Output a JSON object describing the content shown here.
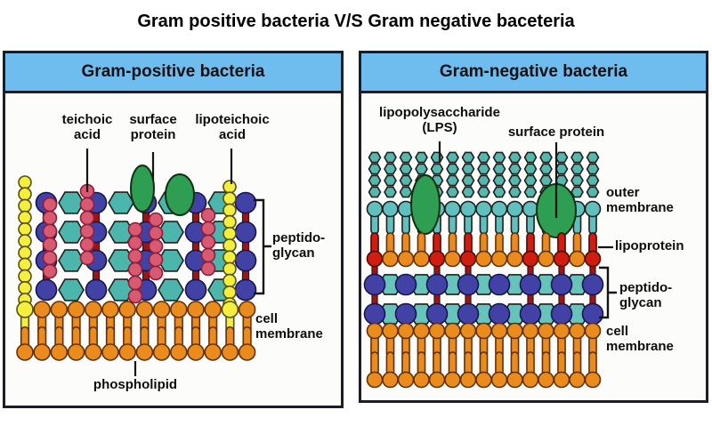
{
  "title": "Gram positive bacteria V/S Gram negative baceteria",
  "palette": {
    "header_bg": "#6fbdee",
    "panel_border": "#1d1d28",
    "ink": "#1f1f1f",
    "line_ink": "#141414",
    "blue": "#4242a6",
    "navy_outline": "#15154d",
    "teal": "#4cb6ac",
    "teal_light": "#66c4ba",
    "lps_teal": "#56b8ac",
    "outer_teal": "#5fc0bd",
    "orange": "#e98b1d",
    "orange_outline": "#63300a",
    "red": "#cf1d10",
    "bar_red": "#a31212",
    "pink": "#d85a72",
    "pink_outline": "#8e1d36",
    "yellow": "#f4ee3f",
    "yellow_outline": "#55500f",
    "green": "#2d9e52",
    "green_outline": "#0f2e14"
  },
  "left": {
    "header": "Gram-positive bacteria",
    "labels": {
      "teichoic": "teichoic\nacid",
      "surface": "surface\nprotein",
      "lipoteichoic": "lipoteichoic\nacid",
      "peptidoglycan": "peptido-\nglycan",
      "cell_membrane": "cell\nmembrane",
      "phospholipid": "phospholipid"
    }
  },
  "right": {
    "header": "Gram-negative bacteria",
    "labels": {
      "lps": "lipopolysaccharide\n(LPS)",
      "surface": "surface protein",
      "outer_membrane": "outer\nmembrane",
      "lipoprotein": "lipoprotein",
      "peptidoglycan": "peptido-\nglycan",
      "cell_membrane": "cell\nmembrane"
    }
  }
}
